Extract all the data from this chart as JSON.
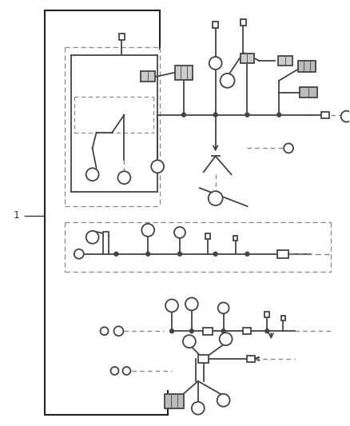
{
  "bg_color": "#ffffff",
  "lc": "#444444",
  "dc": "#888888",
  "fig_width": 4.38,
  "fig_height": 5.33,
  "dpi": 100
}
